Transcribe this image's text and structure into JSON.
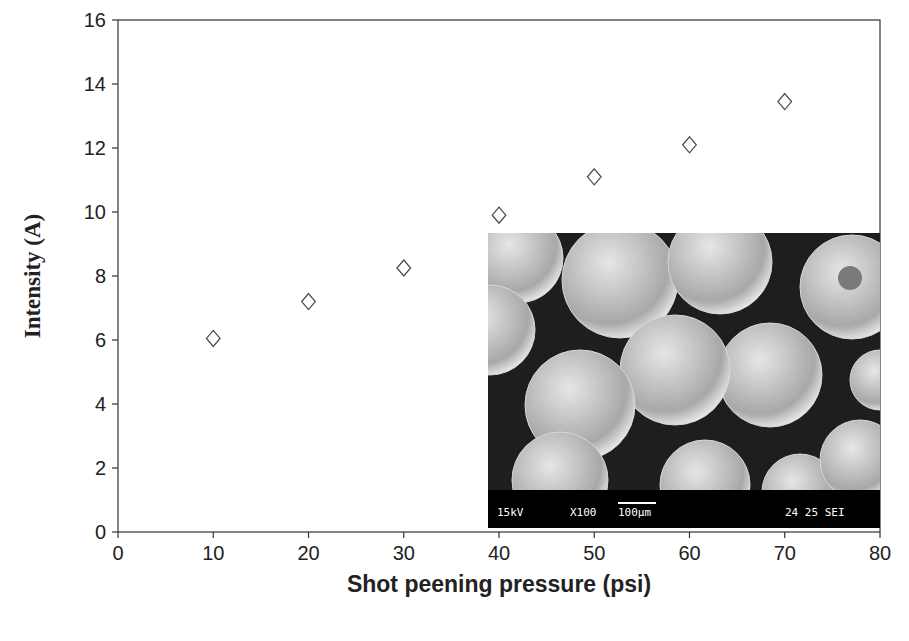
{
  "chart_data": {
    "type": "scatter",
    "x_label": "Shot peening pressure (psi)",
    "y_label": "Intensity (A)",
    "x": [
      10,
      20,
      30,
      40,
      50,
      60,
      70
    ],
    "values": [
      6.05,
      7.2,
      8.25,
      9.9,
      11.1,
      12.1,
      13.45
    ],
    "color": "#4d4d4d",
    "marker": "diamond",
    "xlim": [
      0,
      80
    ],
    "xticks": [
      0,
      10,
      20,
      30,
      40,
      50,
      60,
      70,
      80
    ],
    "ylim": [
      0,
      16
    ],
    "yticks": [
      0,
      2,
      4,
      6,
      8,
      10,
      12,
      14,
      16
    ],
    "grid": false,
    "annotations": [
      "15kV",
      "X100",
      "100µm",
      "24 25 SEI"
    ]
  }
}
